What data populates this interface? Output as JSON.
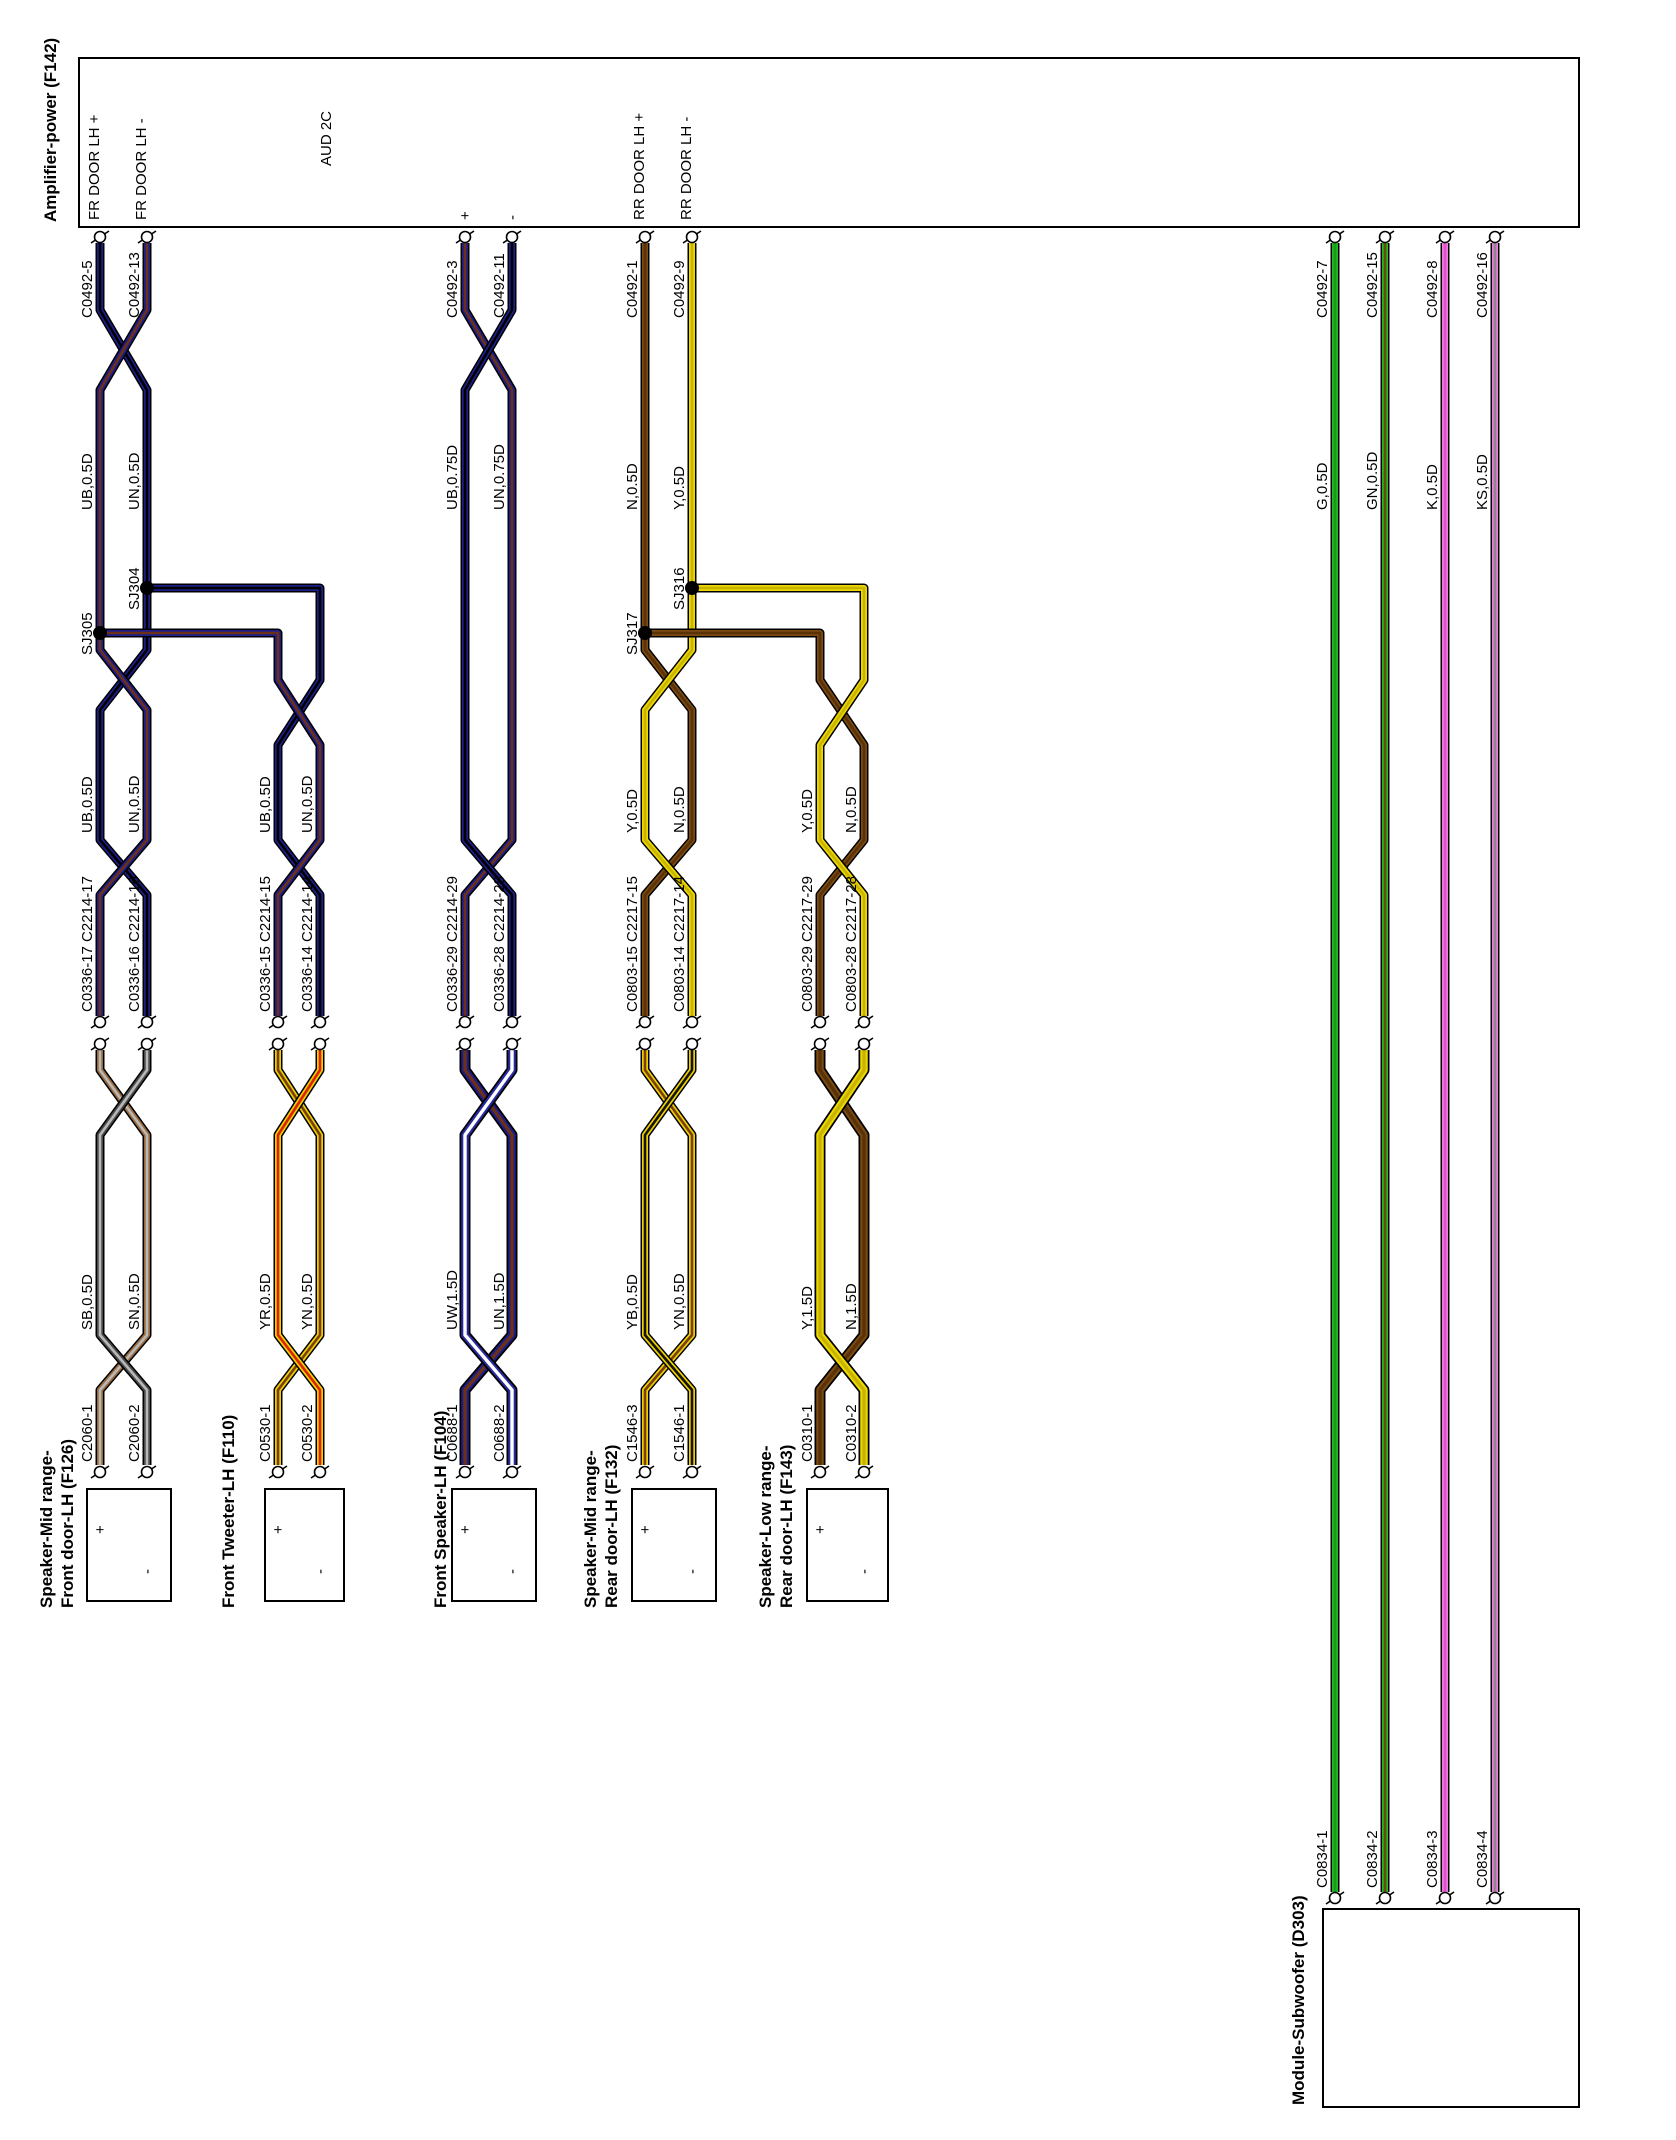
{
  "amplifier": {
    "title": "Amplifier-power (F142)",
    "internal_label": "AUD 2C",
    "pin_names": [
      "FR DOOR LH +",
      "FR DOOR LH -",
      "+",
      "-",
      "RR DOOR LH +",
      "RR DOOR LH -"
    ]
  },
  "splices": {
    "sj304": "SJ304",
    "sj305": "SJ305",
    "sj316": "SJ316",
    "sj317": "SJ317"
  },
  "wire_colors": {
    "UB": {
      "main": "#1e1e8a",
      "trace": "#000000"
    },
    "UN": {
      "main": "#1e1e8a",
      "trace": "#6b3015"
    },
    "SB": {
      "main": "#4a4a4a",
      "trace": "#b8b8b8"
    },
    "SN": {
      "main": "#9a6a3c",
      "trace": "#b8b8b8"
    },
    "YR": {
      "main": "#eed000",
      "trace": "#dd2200"
    },
    "YN": {
      "main": "#eed000",
      "trace": "#7a4012"
    },
    "UW": {
      "main": "#2a2aa0",
      "trace": "#ffffff"
    },
    "N": {
      "main": "#7a4a12",
      "trace": "#5a3208"
    },
    "Y": {
      "main": "#ecd800",
      "trace": "#c8b400"
    },
    "YB": {
      "main": "#eed000",
      "trace": "#151515"
    },
    "G": {
      "main": "#22b822",
      "trace": "#1a9a1a"
    },
    "GN": {
      "main": "#22b822",
      "trace": "#6b4a10"
    },
    "K": {
      "main": "#ee7ae0",
      "trace": "#e050c8"
    },
    "KS": {
      "main": "#ee7ae0",
      "trace": "#8a8a8a"
    }
  },
  "groups": [
    {
      "id": "front-mid",
      "name_lines": [
        "Speaker-Mid range-",
        "Front door-LH (F126)"
      ],
      "amp_pins": [
        "C0492-5",
        "C0492-13"
      ],
      "upper_wires": [
        "UB,0.5D",
        "UN,0.5D"
      ],
      "mid_wires": [
        "UB,0.5D",
        "UN,0.5D"
      ],
      "junctions": [
        "C0336-17 C2214-17",
        "C0336-16 C2214-16"
      ],
      "lower_wires": [
        "SB,0.5D",
        "SN,0.5D"
      ],
      "pins": [
        "C2060-1",
        "C2060-2"
      ],
      "terminals": [
        "+",
        "-"
      ]
    },
    {
      "id": "tweeter",
      "name_lines": [
        "Front Tweeter-LH (F110)"
      ],
      "mid_wires": [
        "UB,0.5D",
        "UN,0.5D"
      ],
      "junctions": [
        "C0336-15 C2214-15",
        "C0336-14 C2214-14"
      ],
      "lower_wires": [
        "YR,0.5D",
        "YN,0.5D"
      ],
      "pins": [
        "C0530-1",
        "C0530-2"
      ],
      "terminals": [
        "+",
        "-"
      ]
    },
    {
      "id": "front-speaker",
      "name_lines": [
        "Front Speaker-LH (F104)"
      ],
      "amp_pins": [
        "C0492-3",
        "C0492-11"
      ],
      "upper_wires": [
        "UB,0.75D",
        "UN,0.75D"
      ],
      "junctions": [
        "C0336-29 C2214-29",
        "C0336-28 C2214-28"
      ],
      "lower_wires": [
        "UW,1.5D",
        "UN,1.5D"
      ],
      "pins": [
        "C0688-1",
        "C0688-2"
      ],
      "terminals": [
        "+",
        "-"
      ]
    },
    {
      "id": "rear-mid",
      "name_lines": [
        "Speaker-Mid range-",
        "Rear door-LH (F132)"
      ],
      "amp_pins": [
        "C0492-1",
        "C0492-9"
      ],
      "upper_wires": [
        "N,0.5D",
        "Y,0.5D"
      ],
      "mid_wires": [
        "Y,0.5D",
        "N,0.5D"
      ],
      "junctions": [
        "C0803-15 C2217-15",
        "C0803-14 C2217-14"
      ],
      "lower_wires": [
        "YB,0.5D",
        "YN,0.5D"
      ],
      "pins": [
        "C1546-3",
        "C1546-1"
      ],
      "terminals": [
        "+",
        "-"
      ]
    },
    {
      "id": "rear-low",
      "name_lines": [
        "Speaker-Low range-",
        "Rear door-LH (F143)"
      ],
      "mid_wires": [
        "Y,0.5D",
        "N,0.5D"
      ],
      "junctions": [
        "C0803-29 C2217-29",
        "C0803-28 C2217-28"
      ],
      "lower_wires": [
        "Y,1.5D",
        "N,1.5D"
      ],
      "pins": [
        "C0310-1",
        "C0310-2"
      ],
      "terminals": [
        "+",
        "-"
      ]
    },
    {
      "id": "subwoofer",
      "name_lines": [
        "Module-Subwoofer (D303)"
      ],
      "amp_pins": [
        "C0492-7",
        "C0492-15",
        "C0492-8",
        "C0492-16"
      ],
      "upper_wires": [
        "G,0.5D",
        "GN,0.5D",
        "K,0.5D",
        "KS,0.5D"
      ],
      "pins": [
        "C0834-1",
        "C0834-2",
        "C0834-3",
        "C0834-4"
      ]
    }
  ]
}
